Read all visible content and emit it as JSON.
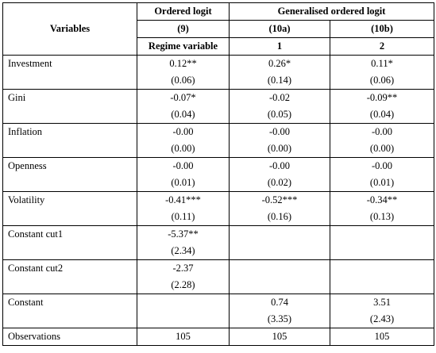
{
  "header": {
    "variables_label": "Variables",
    "ordered_logit": "Ordered logit",
    "generalised_ordered_logit": "Generalised ordered logit",
    "col_9": "(9)",
    "col_10a": "(10a)",
    "col_10b": "(10b)",
    "regime_variable": "Regime variable",
    "sub_1": "1",
    "sub_2": "2"
  },
  "rows": [
    {
      "label": "Investment",
      "c9": "0.12**",
      "c9se": "(0.06)",
      "c10a": "0.26*",
      "c10ase": "(0.14)",
      "c10b": "0.11*",
      "c10bse": "(0.06)"
    },
    {
      "label": "Gini",
      "c9": "-0.07*",
      "c9se": "(0.04)",
      "c10a": "-0.02",
      "c10ase": "(0.05)",
      "c10b": "-0.09**",
      "c10bse": "(0.04)"
    },
    {
      "label": "Inflation",
      "c9": "-0.00",
      "c9se": "(0.00)",
      "c10a": "-0.00",
      "c10ase": "(0.00)",
      "c10b": "-0.00",
      "c10bse": "(0.00)"
    },
    {
      "label": "Openness",
      "c9": "-0.00",
      "c9se": "(0.01)",
      "c10a": "-0.00",
      "c10ase": "(0.02)",
      "c10b": "-0.00",
      "c10bse": "(0.01)"
    },
    {
      "label": "Volatility",
      "c9": "-0.41***",
      "c9se": "(0.11)",
      "c10a": "-0.52***",
      "c10ase": "(0.16)",
      "c10b": "-0.34**",
      "c10bse": "(0.13)"
    },
    {
      "label": "Constant cut1",
      "c9": "-5.37**",
      "c9se": "(2.34)",
      "c10a": "",
      "c10ase": "",
      "c10b": "",
      "c10bse": ""
    },
    {
      "label": "Constant cut2",
      "c9": "-2.37",
      "c9se": "(2.28)",
      "c10a": "",
      "c10ase": "",
      "c10b": "",
      "c10bse": ""
    },
    {
      "label": "Constant",
      "c9": "",
      "c9se": "",
      "c10a": "0.74",
      "c10ase": "(3.35)",
      "c10b": "3.51",
      "c10bse": "(2.43)"
    }
  ],
  "observations": {
    "label": "Observations",
    "c9": "105",
    "c10a": "105",
    "c10b": "105"
  }
}
